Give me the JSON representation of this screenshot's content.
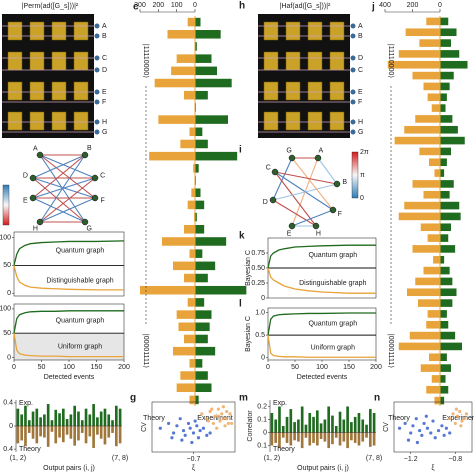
{
  "panels": [
    {
      "type": "chip",
      "title": "|Perm(ad([G_s]))|²",
      "ports": [
        "A",
        "B",
        "C",
        "D",
        "E",
        "F",
        "H",
        "G"
      ]
    },
    {
      "type": "hbar",
      "letter": "c",
      "xlim": [
        0,
        300
      ],
      "xticks": [
        300,
        200,
        100,
        0
      ],
      "state_labels": [
        "|11110000⟩",
        "|00001111⟩"
      ],
      "series": [
        {
          "name": "Theory",
          "color": "#e8a33a",
          "values": [
            40,
            150,
            0,
            100,
            130,
            220,
            60,
            0,
            200,
            30,
            80,
            250,
            10,
            0,
            20,
            40,
            5,
            60,
            180,
            30,
            120,
            60,
            300,
            40,
            100,
            90,
            60,
            120,
            30,
            80,
            100,
            30
          ]
        },
        {
          "name": "Experiment",
          "color": "#1f6b1f",
          "values": [
            30,
            140,
            10,
            90,
            120,
            200,
            70,
            5,
            180,
            40,
            70,
            230,
            20,
            5,
            30,
            50,
            10,
            50,
            170,
            40,
            110,
            70,
            280,
            50,
            90,
            80,
            70,
            110,
            40,
            70,
            90,
            20
          ]
        }
      ]
    },
    {
      "type": "graph",
      "nodes": [
        "A",
        "B",
        "C",
        "D",
        "E",
        "F",
        "G",
        "H"
      ],
      "edges": [
        [
          0,
          1,
          "#c0504d"
        ],
        [
          0,
          2,
          "#4f81bd"
        ],
        [
          0,
          5,
          "#c0504d"
        ],
        [
          0,
          6,
          "#4f81bd"
        ],
        [
          3,
          1,
          "#4f81bd"
        ],
        [
          3,
          2,
          "#c0504d"
        ],
        [
          3,
          5,
          "#4f81bd"
        ],
        [
          3,
          6,
          "#c0504d"
        ],
        [
          4,
          1,
          "#c0504d"
        ],
        [
          4,
          2,
          "#4f81bd"
        ],
        [
          4,
          5,
          "#c0504d"
        ],
        [
          4,
          6,
          "#4f81bd"
        ],
        [
          7,
          1,
          "#4f81bd"
        ],
        [
          7,
          2,
          "#c0504d"
        ],
        [
          7,
          5,
          "#4f81bd"
        ],
        [
          7,
          6,
          "#c0504d"
        ]
      ],
      "colorbar_labels": []
    },
    {
      "type": "line",
      "x": [
        0,
        5,
        10,
        20,
        30,
        50,
        75,
        100,
        150,
        200
      ],
      "xlim": [
        0,
        200
      ],
      "ylim": [
        -5,
        110
      ],
      "yticks": [
        100,
        50,
        0
      ],
      "hline": 50,
      "annotations": [
        "Quantum graph",
        "Distinguishable graph"
      ],
      "series": [
        {
          "color": "#1f6b1f",
          "values": [
            50,
            70,
            80,
            86,
            89,
            91,
            92,
            93,
            93,
            94
          ]
        },
        {
          "color": "#e8a33a",
          "values": [
            50,
            30,
            20,
            14,
            11,
            9,
            8,
            7,
            6,
            6
          ]
        }
      ]
    },
    {
      "type": "line",
      "x": [
        0,
        5,
        10,
        20,
        30,
        50,
        75,
        100,
        150,
        200
      ],
      "xlim": [
        0,
        200
      ],
      "ylim": [
        -5,
        110
      ],
      "yticks": [
        100,
        50,
        0
      ],
      "hline": 50,
      "xticks": [
        0,
        50,
        100,
        150,
        200
      ],
      "xlabel": "Detected events",
      "annotations": [
        "Quantum graph",
        "Uniform graph"
      ],
      "series": [
        {
          "color": "#1f6b1f",
          "values": [
            50,
            80,
            88,
            92,
            94,
            95,
            95,
            96,
            96,
            96
          ]
        },
        {
          "color": "#e8a33a",
          "values": [
            50,
            15,
            8,
            5,
            4,
            3,
            3,
            2,
            2,
            2
          ]
        }
      ]
    },
    {
      "type": "bar",
      "ylim": [
        -0.45,
        0.45
      ],
      "yticks": [
        0.4,
        0,
        {
          "value": -0.4,
          "label": "0.4"
        }
      ],
      "xlabel": "Output pairs (i, j)",
      "categories": [
        "(1, 2)",
        null,
        null,
        null,
        null,
        null,
        null,
        null,
        null,
        null,
        null,
        null,
        null,
        null,
        null,
        null,
        null,
        null,
        null,
        null,
        null,
        null,
        null,
        null,
        null,
        null,
        null,
        "(7, 8)"
      ],
      "series": [
        {
          "name": "Exp.",
          "color": "#1f6b1f",
          "values": [
            0.3,
            0.2,
            0.35,
            0.1,
            0.25,
            0.3,
            0.15,
            0.2,
            0.38,
            0.1,
            0.28,
            0.22,
            0.3,
            0.12,
            0.2,
            0.35,
            0.25,
            0.1,
            0.3,
            0.2,
            0.38,
            0.15,
            0.25,
            0.3,
            0.2,
            0.1,
            0.35,
            0.3
          ]
        },
        {
          "name": "Theory",
          "color": "#a0763a",
          "values": [
            -0.3,
            -0.25,
            -0.35,
            -0.12,
            -0.22,
            -0.3,
            -0.18,
            -0.2,
            -0.36,
            -0.1,
            -0.3,
            -0.2,
            -0.28,
            -0.15,
            -0.22,
            -0.34,
            -0.25,
            -0.12,
            -0.3,
            -0.18,
            -0.38,
            -0.15,
            -0.22,
            -0.32,
            -0.2,
            -0.12,
            -0.35,
            -0.3
          ]
        }
      ]
    },
    {
      "type": "scatter",
      "letter": "g",
      "ylabel": "CV",
      "xlabel": "ξ",
      "xlim": [
        -0.95,
        -0.45
      ],
      "ylim": [
        0,
        1.05
      ],
      "xticks": [
        {
          "value": -0.7,
          "label": "−0.7"
        }
      ],
      "series": [
        {
          "color": "#3a5fcd",
          "x": [
            -0.9,
            -0.85,
            -0.82,
            -0.8,
            -0.78,
            -0.76,
            -0.75,
            -0.73,
            -0.72,
            -0.7,
            -0.69,
            -0.67,
            -0.66,
            -0.64,
            -0.62,
            -0.6,
            -0.83,
            -0.77,
            -0.71,
            -0.68
          ],
          "values": [
            0.5,
            0.6,
            0.4,
            0.55,
            0.7,
            0.45,
            0.35,
            0.6,
            0.5,
            0.4,
            0.65,
            0.3,
            0.45,
            0.5,
            0.35,
            0.4,
            0.3,
            0.25,
            0.2,
            0.55
          ]
        },
        {
          "color": "#f0a860",
          "x": [
            -0.65,
            -0.62,
            -0.6,
            -0.58,
            -0.57,
            -0.55,
            -0.54,
            -0.53,
            -0.52,
            -0.51,
            -0.5,
            -0.49,
            -0.56,
            -0.59,
            -0.61,
            -0.55,
            -0.52,
            -0.5,
            -0.48,
            -0.47
          ],
          "values": [
            0.8,
            0.7,
            0.85,
            0.6,
            0.75,
            0.9,
            0.65,
            0.8,
            0.7,
            0.55,
            0.85,
            0.6,
            0.5,
            0.9,
            0.65,
            0.75,
            0.95,
            0.7,
            0.8,
            0.6
          ]
        }
      ]
    },
    {
      "type": "chip",
      "letter": "h",
      "title": "|Haf(ad([G_s]))|²",
      "ports": [
        "A",
        "B",
        "D",
        "C",
        "E",
        "F",
        "H",
        "G"
      ]
    },
    {
      "type": "hbar",
      "letter": "j",
      "xlim": [
        0,
        400
      ],
      "xticks": [
        400,
        200,
        0
      ],
      "state_labels": [
        "|11110000⟩",
        "|00001111⟩"
      ],
      "series": [
        {
          "name": "Theory",
          "color": "#e8a33a",
          "values": [
            100,
            250,
            150,
            300,
            380,
            200,
            120,
            90,
            60,
            180,
            260,
            330,
            150,
            80,
            40,
            200,
            120,
            260,
            300,
            140,
            90,
            200,
            50,
            120,
            180,
            240,
            160,
            90,
            100,
            220,
            300,
            80,
            140,
            60,
            100,
            40
          ]
        },
        {
          "name": "Experiment",
          "color": "#1f6b1f",
          "values": [
            60,
            120,
            80,
            140,
            200,
            100,
            70,
            50,
            40,
            90,
            130,
            180,
            80,
            50,
            30,
            100,
            70,
            140,
            150,
            80,
            60,
            110,
            30,
            70,
            90,
            120,
            90,
            50,
            60,
            110,
            160,
            50,
            80,
            40,
            60,
            30
          ]
        }
      ]
    },
    {
      "type": "graph",
      "letter": "i",
      "nodes": [
        "A",
        "B",
        "C",
        "D",
        "E",
        "F",
        "G",
        "H"
      ],
      "edges": [
        [
          6,
          0,
          "#c0504d"
        ],
        [
          6,
          3,
          "#4f81bd"
        ],
        [
          0,
          1,
          "#9ec3e6"
        ],
        [
          0,
          4,
          "#f4b183"
        ],
        [
          2,
          5,
          "#4f81bd"
        ],
        [
          2,
          7,
          "#c0504d"
        ],
        [
          1,
          3,
          "#9ec3e6"
        ],
        [
          3,
          7,
          "#c0504d"
        ],
        [
          4,
          5,
          "#4f81bd"
        ],
        [
          6,
          5,
          "#f4b183"
        ],
        [
          2,
          1,
          "#c0504d"
        ],
        [
          4,
          7,
          "#9ec3e6"
        ]
      ],
      "colorbar_labels": [
        "2π",
        "π",
        "0"
      ]
    },
    {
      "type": "line",
      "letter": "k",
      "ylabel": "Bayesian C",
      "x": [
        0,
        5,
        10,
        20,
        30,
        50,
        75,
        100,
        150,
        200
      ],
      "xlim": [
        0,
        200
      ],
      "ylim": [
        0,
        1
      ],
      "yticks": [
        {
          "value": 0.75,
          "label": "0.75"
        },
        {
          "value": 0.5,
          "label": "0.50"
        },
        0.25,
        0
      ],
      "hline": 0.5,
      "annotations": [
        "Quantum graph",
        "Distinguishable graph"
      ],
      "series": [
        {
          "color": "#1f6b1f",
          "values": [
            0.5,
            0.7,
            0.75,
            0.8,
            0.82,
            0.85,
            0.86,
            0.87,
            0.88,
            0.88
          ]
        },
        {
          "color": "#e8a33a",
          "values": [
            0.5,
            0.35,
            0.3,
            0.25,
            0.2,
            0.15,
            0.12,
            0.1,
            0.08,
            0.08
          ]
        }
      ]
    },
    {
      "type": "line",
      "letter": "l",
      "ylabel": "Bayesian C",
      "x": [
        0,
        5,
        10,
        20,
        30,
        50,
        75,
        100,
        150,
        200
      ],
      "xlim": [
        0,
        200
      ],
      "ylim": [
        -0.05,
        1.1
      ],
      "yticks": [
        {
          "value": 1,
          "label": "1.0"
        },
        0.5,
        0
      ],
      "hline": 0.5,
      "xticks": [
        0,
        50,
        100,
        150,
        200
      ],
      "xlabel": "Detected events",
      "annotations": [
        "Quantum graph",
        "Uniform graph"
      ],
      "series": [
        {
          "color": "#1f6b1f",
          "values": [
            0.5,
            0.85,
            0.92,
            0.95,
            0.96,
            0.97,
            0.98,
            0.98,
            0.99,
            0.99
          ]
        },
        {
          "color": "#e8a33a",
          "values": [
            0.5,
            0.1,
            0.05,
            0.03,
            0.02,
            0.02,
            0.01,
            0.01,
            0.01,
            0.01
          ]
        }
      ]
    },
    {
      "type": "bar",
      "letter": "m",
      "ylabel": "Correlator",
      "ylim": [
        -0.15,
        0.25
      ],
      "yticks": [
        0.2,
        0.1,
        0,
        {
          "value": -0.1,
          "label": "0.1"
        }
      ],
      "xlabel": "Output pairs (i, j)",
      "categories": [
        "(1, 2)",
        null,
        null,
        null,
        null,
        null,
        null,
        null,
        null,
        null,
        null,
        null,
        null,
        null,
        null,
        null,
        null,
        null,
        null,
        null,
        null,
        null,
        null,
        null,
        null,
        null,
        null,
        "(7, 8)"
      ],
      "series": [
        {
          "name": "Exp.",
          "color": "#1f6b1f",
          "values": [
            0.15,
            0.1,
            0.2,
            0.05,
            0.12,
            0.18,
            0.08,
            0.1,
            0.2,
            0.06,
            0.15,
            0.12,
            0.17,
            0.07,
            0.1,
            0.2,
            0.13,
            0.05,
            0.16,
            0.1,
            0.2,
            0.08,
            0.12,
            0.15,
            0.1,
            0.06,
            0.18,
            0.15
          ]
        },
        {
          "name": "Theory",
          "color": "#a0763a",
          "values": [
            -0.1,
            -0.08,
            -0.12,
            -0.04,
            -0.08,
            -0.1,
            -0.06,
            -0.07,
            -0.12,
            -0.04,
            -0.1,
            -0.08,
            -0.1,
            -0.05,
            -0.07,
            -0.12,
            -0.09,
            -0.04,
            -0.1,
            -0.07,
            -0.12,
            -0.06,
            -0.08,
            -0.1,
            -0.07,
            -0.04,
            -0.11,
            -0.1
          ]
        }
      ]
    },
    {
      "type": "scatter",
      "letter": "n",
      "ylabel": "CV",
      "xlabel": "ξ",
      "xlim": [
        -1.35,
        -0.65
      ],
      "ylim": [
        0,
        1.05
      ],
      "xticks": [
        {
          "value": -1.2,
          "label": "−1.2"
        },
        {
          "value": -0.8,
          "label": "−0.8"
        }
      ],
      "series": [
        {
          "color": "#3a5fcd",
          "x": [
            -1.3,
            -1.25,
            -1.2,
            -1.18,
            -1.15,
            -1.12,
            -1.1,
            -1.08,
            -1.05,
            -1.02,
            -1.0,
            -0.98,
            -0.95,
            -0.92,
            -0.9,
            -0.88,
            -0.85,
            -1.22,
            -1.14,
            -1.06
          ],
          "values": [
            0.5,
            0.6,
            0.4,
            0.55,
            0.7,
            0.45,
            0.35,
            0.6,
            0.5,
            0.4,
            0.65,
            0.3,
            0.45,
            0.55,
            0.35,
            0.5,
            0.4,
            0.25,
            0.2,
            0.75
          ]
        },
        {
          "color": "#f0a860",
          "x": [
            -0.85,
            -0.82,
            -0.8,
            -0.78,
            -0.76,
            -0.74,
            -0.72,
            -0.7,
            -0.79,
            -0.75
          ],
          "values": [
            0.7,
            0.8,
            0.6,
            0.75,
            0.85,
            0.65,
            0.7,
            0.8,
            0.9,
            0.55
          ]
        }
      ]
    }
  ]
}
